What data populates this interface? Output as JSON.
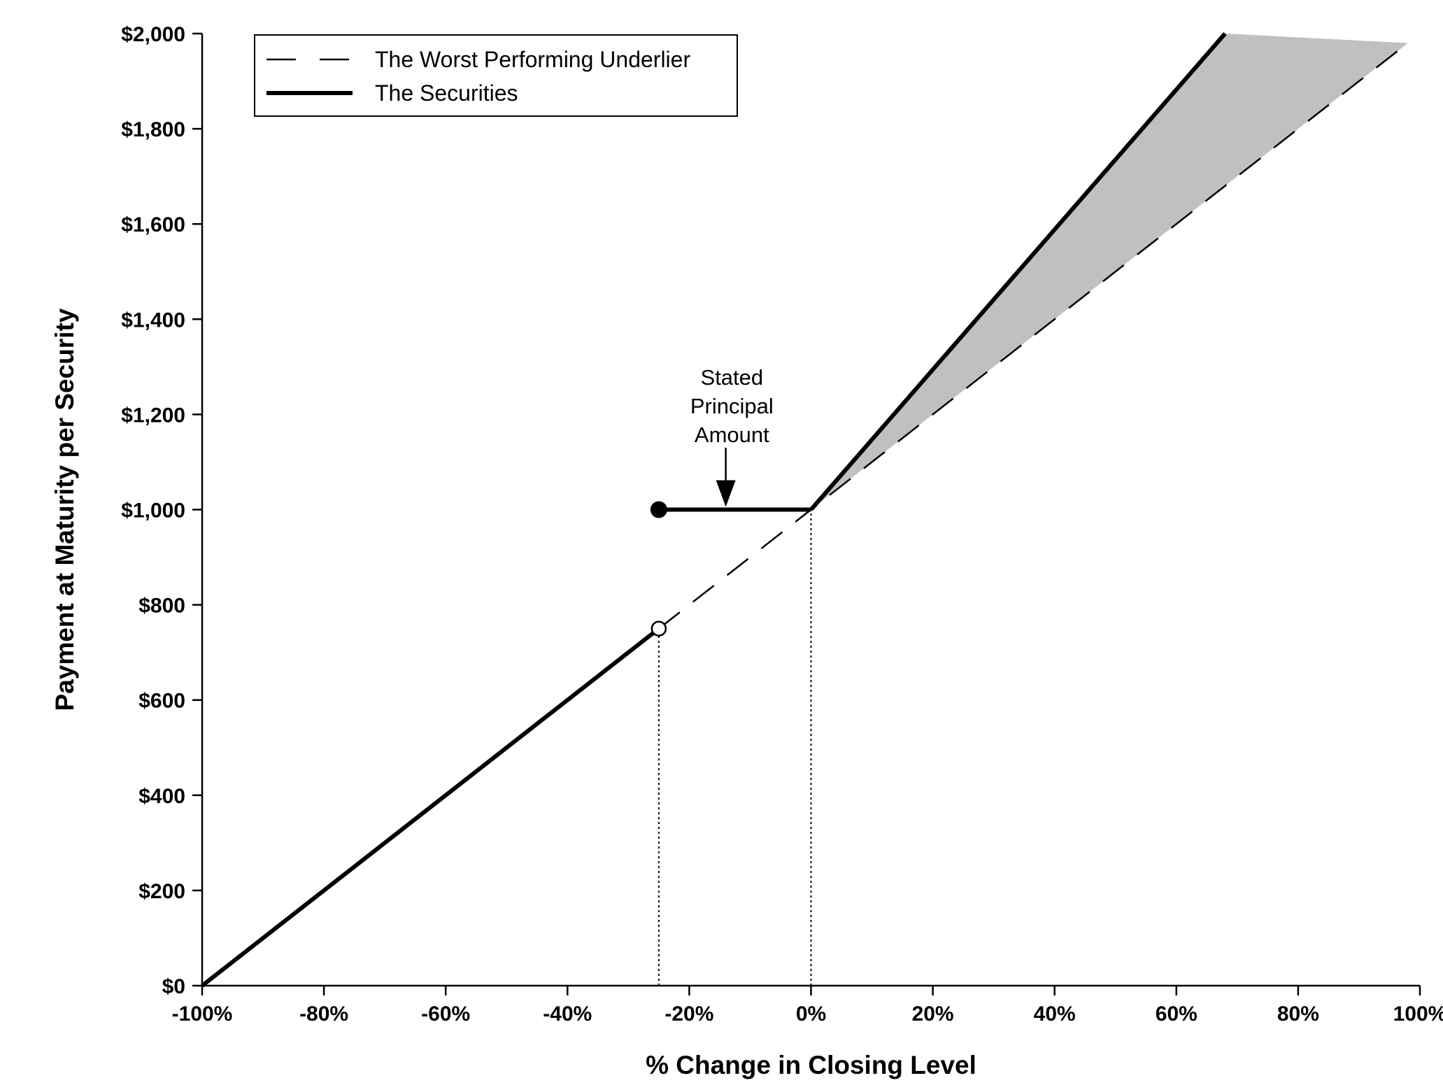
{
  "chart_data": {
    "type": "line",
    "title": "",
    "xlabel": "% Change in Closing Level",
    "ylabel": "Payment at Maturity per Security",
    "xlim": [
      -100,
      100
    ],
    "ylim": [
      0,
      2000
    ],
    "grid": false,
    "legend_position": "top-left",
    "x_ticks": [
      -100,
      -80,
      -60,
      -40,
      -20,
      0,
      20,
      40,
      60,
      80,
      100
    ],
    "x_tick_labels": [
      "-100%",
      "-80%",
      "-60%",
      "-40%",
      "-20%",
      "0%",
      "20%",
      "40%",
      "60%",
      "80%",
      "100%"
    ],
    "y_ticks": [
      0,
      200,
      400,
      600,
      800,
      1000,
      1200,
      1400,
      1600,
      1800,
      2000
    ],
    "y_tick_labels": [
      "$0",
      "$200",
      "$400",
      "$600",
      "$800",
      "$1,000",
      "$1,200",
      "$1,400",
      "$1,600",
      "$1,800",
      "$2,000"
    ],
    "series": [
      {
        "name": "The Worst Performing Underlier",
        "style": "dashed",
        "x": [
          -25,
          0,
          98
        ],
        "y": [
          750,
          1000,
          1980
        ]
      },
      {
        "name": "The Securities",
        "style": "solid-thick",
        "segments": [
          {
            "x": [
              -100,
              -25
            ],
            "y": [
              0,
              750
            ]
          },
          {
            "x": [
              -25,
              0
            ],
            "y": [
              1000,
              1000
            ]
          },
          {
            "x": [
              0,
              68
            ],
            "y": [
              1000,
              2000
            ]
          }
        ]
      }
    ],
    "markers": [
      {
        "type": "filled",
        "x": -25,
        "y": 1000
      },
      {
        "type": "open",
        "x": -25,
        "y": 750
      }
    ],
    "reference_lines": [
      {
        "style": "dotted",
        "x": -25,
        "y_from": 0,
        "y_to": 750
      },
      {
        "style": "dotted",
        "x": 0,
        "y_from": 0,
        "y_to": 1000
      }
    ],
    "shaded_region": {
      "color": "#c0c0c0",
      "polygon_x": [
        0,
        68,
        98
      ],
      "polygon_y": [
        1000,
        2000,
        1980
      ]
    },
    "annotations": [
      {
        "lines": [
          "Stated",
          "Principal",
          "Amount"
        ],
        "x": -13,
        "arrow_tip": {
          "x": -14,
          "y": 1000
        }
      }
    ],
    "colors": {
      "line": "#000000",
      "shade": "#c0c0c0",
      "background": "#ffffff"
    }
  }
}
